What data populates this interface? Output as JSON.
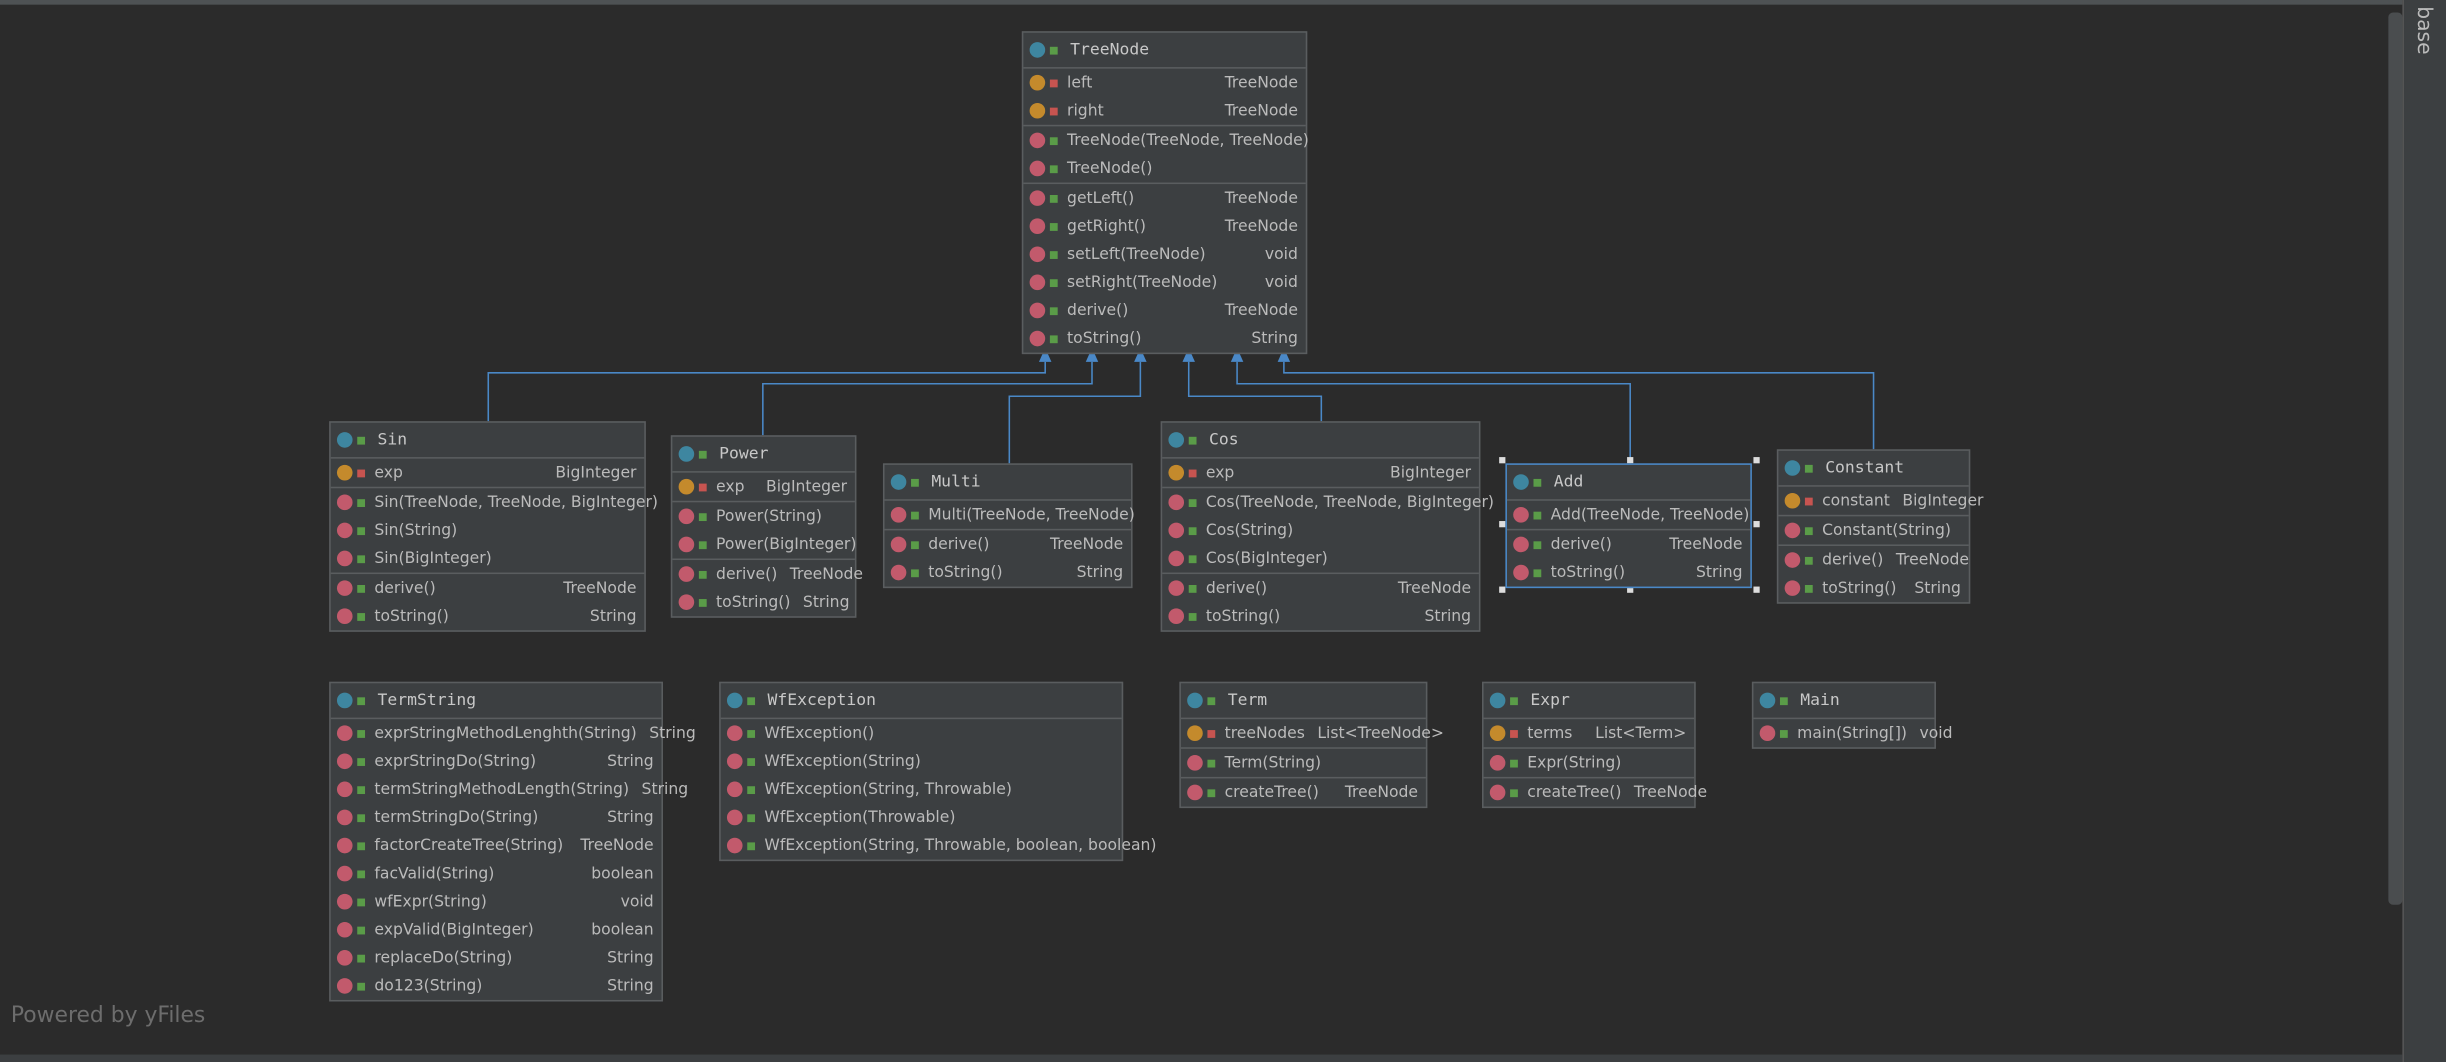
{
  "nodes": [
    {
      "name": "TreeNode",
      "fields": [
        {
          "name": "left",
          "type": "TreeNode"
        },
        {
          "name": "right",
          "type": "TreeNode"
        }
      ],
      "constructors": [
        {
          "name": "TreeNode(TreeNode, TreeNode)"
        },
        {
          "name": "TreeNode()"
        }
      ],
      "methods": [
        {
          "name": "getLeft()",
          "type": "TreeNode"
        },
        {
          "name": "getRight()",
          "type": "TreeNode"
        },
        {
          "name": "setLeft(TreeNode)",
          "type": "void"
        },
        {
          "name": "setRight(TreeNode)",
          "type": "void"
        },
        {
          "name": "derive()",
          "type": "TreeNode"
        },
        {
          "name": "toString()",
          "type": "String"
        }
      ]
    },
    {
      "name": "Sin",
      "fields": [
        {
          "name": "exp",
          "type": "BigInteger"
        }
      ],
      "constructors": [
        {
          "name": "Sin(TreeNode, TreeNode, BigInteger)"
        },
        {
          "name": "Sin(String)"
        },
        {
          "name": "Sin(BigInteger)"
        }
      ],
      "methods": [
        {
          "name": "derive()",
          "type": "TreeNode"
        },
        {
          "name": "toString()",
          "type": "String"
        }
      ]
    },
    {
      "name": "Power",
      "fields": [
        {
          "name": "exp",
          "type": "BigInteger"
        }
      ],
      "constructors": [
        {
          "name": "Power(String)"
        },
        {
          "name": "Power(BigInteger)"
        }
      ],
      "methods": [
        {
          "name": "derive()",
          "type": "TreeNode"
        },
        {
          "name": "toString()",
          "type": "String"
        }
      ]
    },
    {
      "name": "Multi",
      "fields": [],
      "constructors": [
        {
          "name": "Multi(TreeNode, TreeNode)"
        }
      ],
      "methods": [
        {
          "name": "derive()",
          "type": "TreeNode"
        },
        {
          "name": "toString()",
          "type": "String"
        }
      ]
    },
    {
      "name": "Cos",
      "fields": [
        {
          "name": "exp",
          "type": "BigInteger"
        }
      ],
      "constructors": [
        {
          "name": "Cos(TreeNode, TreeNode, BigInteger)"
        },
        {
          "name": "Cos(String)"
        },
        {
          "name": "Cos(BigInteger)"
        }
      ],
      "methods": [
        {
          "name": "derive()",
          "type": "TreeNode"
        },
        {
          "name": "toString()",
          "type": "String"
        }
      ]
    },
    {
      "name": "Add",
      "fields": [],
      "constructors": [
        {
          "name": "Add(TreeNode, TreeNode)"
        }
      ],
      "methods": [
        {
          "name": "derive()",
          "type": "TreeNode"
        },
        {
          "name": "toString()",
          "type": "String"
        }
      ]
    },
    {
      "name": "Constant",
      "fields": [
        {
          "name": "constant",
          "type": "BigInteger"
        }
      ],
      "constructors": [
        {
          "name": "Constant(String)"
        }
      ],
      "methods": [
        {
          "name": "derive()",
          "type": "TreeNode"
        },
        {
          "name": "toString()",
          "type": "String"
        }
      ]
    },
    {
      "name": "TermString",
      "fields": [],
      "constructors": [],
      "methods": [
        {
          "name": "exprStringMethodLenghth(String)",
          "type": "String"
        },
        {
          "name": "exprStringDo(String)",
          "type": "String"
        },
        {
          "name": "termStringMethodLength(String)",
          "type": "String"
        },
        {
          "name": "termStringDo(String)",
          "type": "String"
        },
        {
          "name": "factorCreateTree(String)",
          "type": "TreeNode"
        },
        {
          "name": "facValid(String)",
          "type": "boolean"
        },
        {
          "name": "wfExpr(String)",
          "type": "void"
        },
        {
          "name": "expValid(BigInteger)",
          "type": "boolean"
        },
        {
          "name": "replaceDo(String)",
          "type": "String"
        },
        {
          "name": "do123(String)",
          "type": "String"
        }
      ]
    },
    {
      "name": "WfException",
      "fields": [],
      "constructors": [
        {
          "name": "WfException()"
        },
        {
          "name": "WfException(String)"
        },
        {
          "name": "WfException(String, Throwable)"
        },
        {
          "name": "WfException(Throwable)"
        },
        {
          "name": "WfException(String, Throwable, boolean, boolean)"
        }
      ],
      "methods": []
    },
    {
      "name": "Term",
      "fields": [
        {
          "name": "treeNodes",
          "type": "List<TreeNode>"
        }
      ],
      "constructors": [
        {
          "name": "Term(String)"
        }
      ],
      "methods": [
        {
          "name": "createTree()",
          "type": "TreeNode"
        }
      ]
    },
    {
      "name": "Expr",
      "fields": [
        {
          "name": "terms",
          "type": "List<Term>"
        }
      ],
      "constructors": [
        {
          "name": "Expr(String)"
        }
      ],
      "methods": [
        {
          "name": "createTree()",
          "type": "TreeNode"
        }
      ]
    },
    {
      "name": "Main",
      "fields": [],
      "constructors": [],
      "methods": [
        {
          "name": "main(String[])",
          "type": "void"
        }
      ]
    }
  ],
  "footer": "Powered by yFiles",
  "side_tab": "base"
}
